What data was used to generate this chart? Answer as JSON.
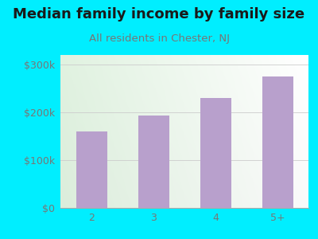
{
  "title": "Median family income by family size",
  "subtitle": "All residents in Chester, NJ",
  "categories": [
    "2",
    "3",
    "4",
    "5+"
  ],
  "values": [
    160000,
    193000,
    230000,
    275000
  ],
  "bar_color": "#b8a0cc",
  "background_outer": "#00eeff",
  "title_color": "#1a1a1a",
  "subtitle_color": "#777777",
  "tick_label_color": "#777777",
  "ylim": [
    0,
    320000
  ],
  "yticks": [
    0,
    100000,
    200000,
    300000
  ],
  "ytick_labels": [
    "$0",
    "$100k",
    "$200k",
    "$300k"
  ],
  "title_fontsize": 13,
  "subtitle_fontsize": 9.5,
  "tick_fontsize": 9
}
